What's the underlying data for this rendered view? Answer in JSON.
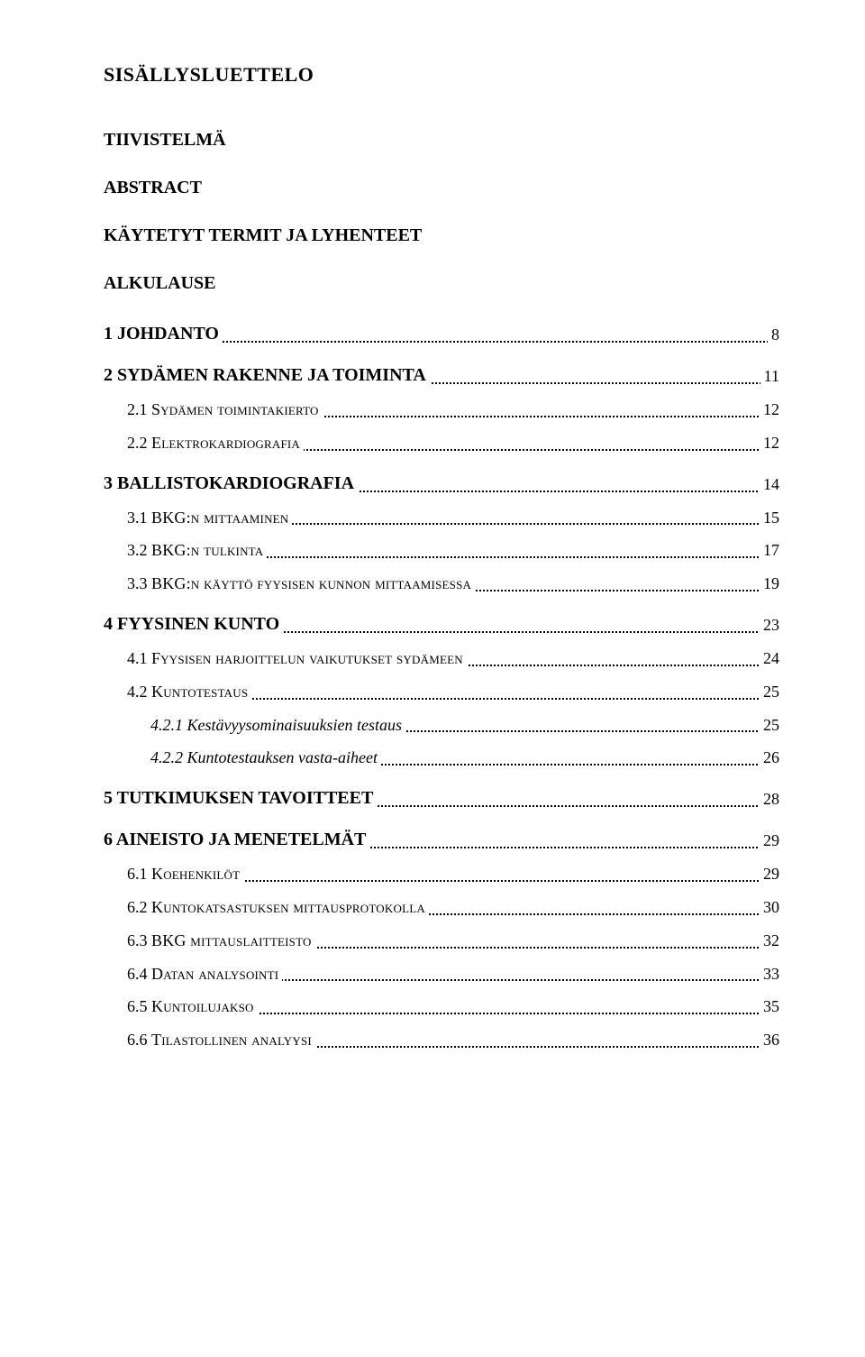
{
  "title": "SISÄLLYSLUETTELO",
  "plain_headings": [
    "TIIVISTELMÄ",
    "ABSTRACT",
    "KÄYTETYT TERMIT JA LYHENTEET",
    "ALKULAUSE"
  ],
  "toc": [
    {
      "level": 0,
      "style": "bold",
      "num": "1",
      "text": "JOHDANTO",
      "page": "8"
    },
    {
      "level": 0,
      "style": "bold",
      "num": "2",
      "text": "SYDÄMEN RAKENNE JA TOIMINTA",
      "page": "11",
      "gap_before": true
    },
    {
      "level": 1,
      "style": "sc",
      "num": "2.1",
      "text": "Sydämen toimintakierto",
      "page": "12"
    },
    {
      "level": 1,
      "style": "sc",
      "num": "2.2",
      "text": "Elektrokardiografia",
      "page": "12"
    },
    {
      "level": 0,
      "style": "bold",
      "num": "3",
      "text": "BALLISTOKARDIOGRAFIA",
      "page": "14",
      "gap_before": true
    },
    {
      "level": 1,
      "style": "sc",
      "num": "3.1",
      "text": "BKG:n mittaaminen",
      "page": "15"
    },
    {
      "level": 1,
      "style": "sc",
      "num": "3.2",
      "text": "BKG:n tulkinta",
      "page": "17"
    },
    {
      "level": 1,
      "style": "sc",
      "num": "3.3",
      "text": "BKG:n käyttö fyysisen kunnon mittaamisessa",
      "page": "19"
    },
    {
      "level": 0,
      "style": "bold",
      "num": "4",
      "text": "FYYSINEN KUNTO",
      "page": "23",
      "gap_before": true
    },
    {
      "level": 1,
      "style": "sc",
      "num": "4.1",
      "text": "Fyysisen harjoittelun vaikutukset sydämeen",
      "page": "24"
    },
    {
      "level": 1,
      "style": "sc",
      "num": "4.2",
      "text": "Kuntotestaus",
      "page": "25"
    },
    {
      "level": 2,
      "style": "it",
      "num": "4.2.1",
      "text": "Kestävyysominaisuuksien testaus",
      "page": "25"
    },
    {
      "level": 2,
      "style": "it",
      "num": "4.2.2",
      "text": "Kuntotestauksen vasta-aiheet",
      "page": "26"
    },
    {
      "level": 0,
      "style": "bold",
      "num": "5",
      "text": "TUTKIMUKSEN TAVOITTEET",
      "page": "28",
      "gap_before": true
    },
    {
      "level": 0,
      "style": "bold",
      "num": "6",
      "text": "AINEISTO JA MENETELMÄT",
      "page": "29",
      "gap_before": true
    },
    {
      "level": 1,
      "style": "sc",
      "num": "6.1",
      "text": "Koehenkilöt",
      "page": "29"
    },
    {
      "level": 1,
      "style": "sc",
      "num": "6.2",
      "text": "Kuntokatsastuksen mittausprotokolla",
      "page": "30"
    },
    {
      "level": 1,
      "style": "sc",
      "num": "6.3",
      "text": "BKG mittauslaitteisto",
      "page": "32"
    },
    {
      "level": 1,
      "style": "sc",
      "num": "6.4",
      "text": "Datan analysointi",
      "page": "33"
    },
    {
      "level": 1,
      "style": "sc",
      "num": "6.5",
      "text": "Kuntoilujakso",
      "page": "35"
    },
    {
      "level": 1,
      "style": "sc",
      "num": "6.6",
      "text": "Tilastollinen analyysi",
      "page": "36"
    }
  ],
  "colors": {
    "background": "#ffffff",
    "text": "#000000",
    "dots": "#000000"
  },
  "typography": {
    "font_family": "Times New Roman",
    "title_fontsize_pt": 17,
    "heading_fontsize_pt": 15,
    "level0_fontsize_pt": 15,
    "level1_fontsize_pt": 14,
    "level2_fontsize_pt": 14
  }
}
